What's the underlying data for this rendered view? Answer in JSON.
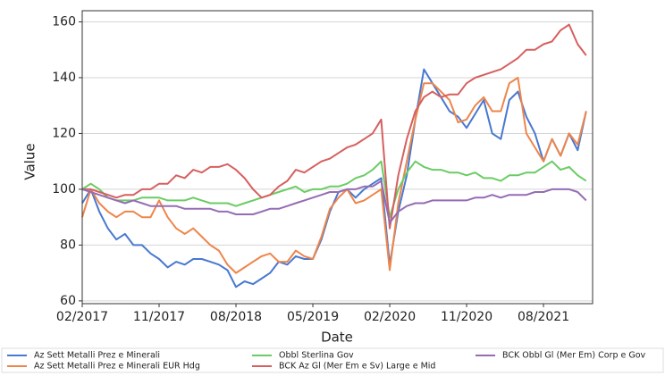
{
  "chart_data": {
    "type": "line",
    "x_label": "Date",
    "y_label": "Value",
    "x": [
      "02/2017",
      "03/2017",
      "04/2017",
      "05/2017",
      "06/2017",
      "07/2017",
      "08/2017",
      "09/2017",
      "10/2017",
      "11/2017",
      "12/2017",
      "01/2018",
      "02/2018",
      "03/2018",
      "04/2018",
      "05/2018",
      "06/2018",
      "07/2018",
      "08/2018",
      "09/2018",
      "10/2018",
      "11/2018",
      "12/2018",
      "01/2019",
      "02/2019",
      "03/2019",
      "04/2019",
      "05/2019",
      "06/2019",
      "07/2019",
      "08/2019",
      "09/2019",
      "10/2019",
      "11/2019",
      "12/2019",
      "01/2020",
      "02/2020",
      "03/2020",
      "04/2020",
      "05/2020",
      "06/2020",
      "07/2020",
      "08/2020",
      "09/2020",
      "10/2020",
      "11/2020",
      "12/2020",
      "01/2021",
      "02/2021",
      "03/2021",
      "04/2021",
      "05/2021",
      "06/2021",
      "07/2021",
      "08/2021",
      "09/2021",
      "10/2021",
      "11/2021",
      "12/2021",
      "01/2022"
    ],
    "xticks": [
      "02/2017",
      "11/2017",
      "08/2018",
      "05/2019",
      "02/2020",
      "11/2020",
      "08/2021"
    ],
    "ylim": [
      59,
      164
    ],
    "yticks": [
      60,
      80,
      100,
      120,
      140,
      160
    ],
    "grid": true,
    "series": [
      {
        "name": "Az Sett Metalli Prez e Minerali",
        "color": "#4878d0",
        "values": [
          95,
          100,
          92,
          86,
          82,
          84,
          80,
          80,
          77,
          75,
          72,
          74,
          73,
          75,
          75,
          74,
          73,
          71,
          65,
          67,
          66,
          68,
          70,
          74,
          73,
          76,
          75,
          75,
          82,
          92,
          99,
          100,
          97,
          100,
          102,
          104,
          73,
          92,
          105,
          125,
          143,
          138,
          133,
          128,
          126,
          122,
          127,
          132,
          120,
          118,
          132,
          135,
          126,
          120,
          110,
          118,
          112,
          120,
          114,
          128
        ]
      },
      {
        "name": "Az Sett Metalli Prez e Minerali EUR Hdg",
        "color": "#ee854a",
        "values": [
          90,
          100,
          95,
          92,
          90,
          92,
          92,
          90,
          90,
          96,
          90,
          86,
          84,
          86,
          83,
          80,
          78,
          73,
          70,
          72,
          74,
          76,
          77,
          74,
          74,
          78,
          76,
          75,
          83,
          93,
          97,
          100,
          95,
          96,
          98,
          100,
          71,
          95,
          110,
          125,
          138,
          138,
          135,
          132,
          124,
          125,
          130,
          133,
          128,
          128,
          138,
          140,
          120,
          115,
          110,
          118,
          112,
          120,
          116,
          128
        ]
      },
      {
        "name": "Obbl Sterlina Gov",
        "color": "#6acc64",
        "values": [
          100,
          102,
          100,
          97,
          96,
          96,
          96,
          97,
          97,
          97,
          96,
          96,
          96,
          97,
          96,
          95,
          95,
          95,
          94,
          95,
          96,
          97,
          98,
          99,
          100,
          101,
          99,
          100,
          100,
          101,
          101,
          102,
          104,
          105,
          107,
          110,
          90,
          100,
          106,
          110,
          108,
          107,
          107,
          106,
          106,
          105,
          106,
          104,
          104,
          103,
          105,
          105,
          106,
          106,
          108,
          110,
          107,
          108,
          105,
          103
        ]
      },
      {
        "name": "BCK Az Gl (Mer Em e Sv) Large e Mid",
        "color": "#d65f5f",
        "values": [
          100,
          100,
          99,
          98,
          97,
          98,
          98,
          100,
          100,
          102,
          102,
          105,
          104,
          107,
          106,
          108,
          108,
          109,
          107,
          104,
          100,
          97,
          98,
          101,
          103,
          107,
          106,
          108,
          110,
          111,
          113,
          115,
          116,
          118,
          120,
          125,
          86,
          105,
          118,
          128,
          133,
          135,
          133,
          134,
          134,
          138,
          140,
          141,
          142,
          143,
          145,
          147,
          150,
          150,
          152,
          153,
          157,
          159,
          152,
          148
        ]
      },
      {
        "name": "BCK Obbl Gl (Mer Em) Corp e Gov",
        "color": "#956cb4",
        "values": [
          100,
          99,
          98,
          97,
          96,
          95,
          96,
          95,
          94,
          94,
          94,
          94,
          93,
          93,
          93,
          93,
          92,
          92,
          91,
          91,
          91,
          92,
          93,
          93,
          94,
          95,
          96,
          97,
          98,
          99,
          99,
          100,
          100,
          101,
          101,
          103,
          88,
          92,
          94,
          95,
          95,
          96,
          96,
          96,
          96,
          96,
          97,
          97,
          98,
          97,
          98,
          98,
          98,
          99,
          99,
          100,
          100,
          100,
          99,
          96
        ]
      }
    ]
  }
}
